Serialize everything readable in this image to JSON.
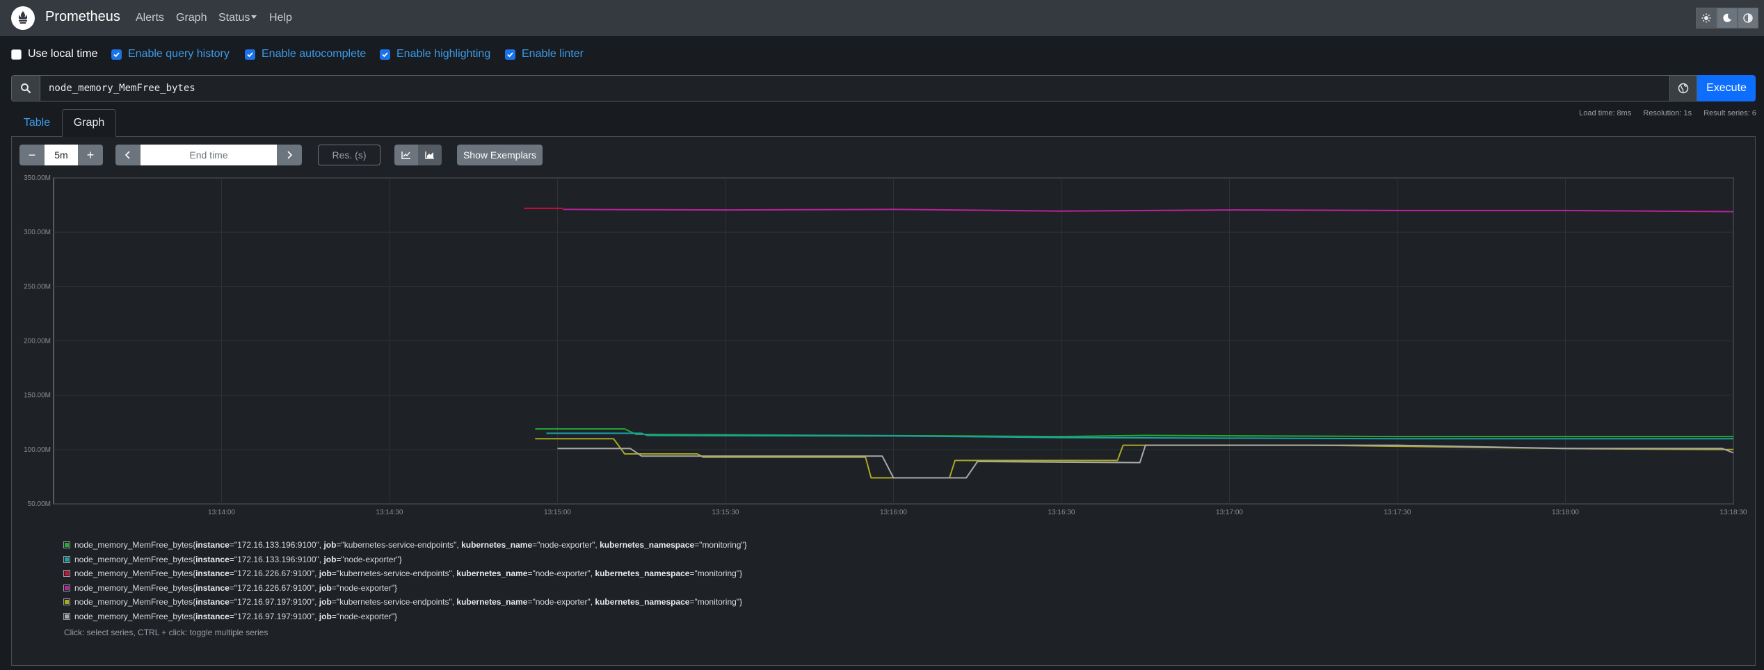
{
  "navbar": {
    "brand": "Prometheus",
    "links": [
      "Alerts",
      "Graph",
      "Status",
      "Help"
    ]
  },
  "options": {
    "use_local_time": "Use local time",
    "query_history": "Enable query history",
    "autocomplete": "Enable autocomplete",
    "highlighting": "Enable highlighting",
    "linter": "Enable linter"
  },
  "query": {
    "expression": "node_memory_MemFree_bytes",
    "execute_label": "Execute"
  },
  "tabs": {
    "table": "Table",
    "graph": "Graph"
  },
  "stats": {
    "load_time": "Load time: 8ms",
    "resolution": "Resolution: 1s",
    "result_series": "Result series: 6"
  },
  "controls": {
    "range": "5m",
    "end_time_placeholder": "End time",
    "resolution_placeholder": "Res. (s)",
    "show_exemplars": "Show Exemplars",
    "minus": "−",
    "plus": "+"
  },
  "chart_data": {
    "type": "line",
    "title": "",
    "xlabel": "",
    "ylabel": "",
    "y_ticks": [
      "50.00M",
      "100.00M",
      "150.00M",
      "200.00M",
      "250.00M",
      "300.00M",
      "350.00M"
    ],
    "ylim": [
      50,
      350
    ],
    "x_ticks": [
      "13:14:00",
      "13:14:30",
      "13:15:00",
      "13:15:30",
      "13:16:00",
      "13:16:30",
      "13:17:00",
      "13:17:30",
      "13:18:00",
      "13:18:30"
    ],
    "xlim": [
      "13:13:30",
      "13:18:30"
    ],
    "y_unit": "M",
    "grid": true,
    "series": [
      {
        "name": "node_memory_MemFree_bytes{instance=\"172.16.133.196:9100\", job=\"kubernetes-service-endpoints\", kubernetes_name=\"node-exporter\", kubernetes_namespace=\"monitoring\"}",
        "color": "#22aa33",
        "points": [
          [
            "13:14:56",
            119
          ],
          [
            "13:15:12",
            119
          ],
          [
            "13:15:14",
            114
          ],
          [
            "13:16:30",
            112
          ],
          [
            "13:16:45",
            113
          ],
          [
            "13:17:30",
            112
          ],
          [
            "13:18:30",
            112
          ]
        ]
      },
      {
        "name": "node_memory_MemFree_bytes{instance=\"172.16.133.196:9100\", job=\"node-exporter\"}",
        "color": "#1aa0a6",
        "points": [
          [
            "13:14:58",
            115
          ],
          [
            "13:15:15",
            115
          ],
          [
            "13:15:16",
            113
          ],
          [
            "13:16:00",
            112.5
          ],
          [
            "13:16:30",
            111
          ],
          [
            "13:17:30",
            110
          ],
          [
            "13:18:30",
            110
          ]
        ]
      },
      {
        "name": "node_memory_MemFree_bytes{instance=\"172.16.226.67:9100\", job=\"kubernetes-service-endpoints\", kubernetes_name=\"node-exporter\", kubernetes_namespace=\"monitoring\"}",
        "color": "#cc1133",
        "points": [
          [
            "13:14:54",
            322
          ],
          [
            "13:15:01",
            322
          ]
        ]
      },
      {
        "name": "node_memory_MemFree_bytes{instance=\"172.16.226.67:9100\", job=\"node-exporter\"}",
        "color": "#bb2299",
        "points": [
          [
            "13:15:01",
            321
          ],
          [
            "13:15:30",
            320.5
          ],
          [
            "13:16:00",
            321
          ],
          [
            "13:16:30",
            319.5
          ],
          [
            "13:17:00",
            320.5
          ],
          [
            "13:17:30",
            320
          ],
          [
            "13:18:00",
            320
          ],
          [
            "13:18:30",
            319
          ]
        ]
      },
      {
        "name": "node_memory_MemFree_bytes{instance=\"172.16.97.197:9100\", job=\"kubernetes-service-endpoints\", kubernetes_name=\"node-exporter\", kubernetes_namespace=\"monitoring\"}",
        "color": "#aaaa22",
        "points": [
          [
            "13:14:56",
            110
          ],
          [
            "13:15:10",
            110
          ],
          [
            "13:15:12",
            96
          ],
          [
            "13:15:25",
            96
          ],
          [
            "13:15:26",
            93
          ],
          [
            "13:15:55",
            93
          ],
          [
            "13:15:56",
            74
          ],
          [
            "13:16:10",
            74
          ],
          [
            "13:16:11",
            90
          ],
          [
            "13:16:40",
            90
          ],
          [
            "13:16:41",
            104
          ],
          [
            "13:17:15",
            104
          ],
          [
            "13:17:30",
            103
          ],
          [
            "13:18:00",
            101
          ],
          [
            "13:18:25",
            100
          ],
          [
            "13:18:30",
            100
          ]
        ]
      },
      {
        "name": "node_memory_MemFree_bytes{instance=\"172.16.97.197:9100\", job=\"node-exporter\"}",
        "color": "#a8a8a8",
        "points": [
          [
            "13:15:00",
            101
          ],
          [
            "13:15:13",
            101
          ],
          [
            "13:15:15",
            94
          ],
          [
            "13:15:58",
            94
          ],
          [
            "13:16:00",
            74
          ],
          [
            "13:16:13",
            74
          ],
          [
            "13:16:15",
            89
          ],
          [
            "13:16:44",
            88
          ],
          [
            "13:16:45",
            104
          ],
          [
            "13:17:30",
            104
          ],
          [
            "13:18:00",
            101
          ],
          [
            "13:18:28",
            101
          ],
          [
            "13:18:30",
            97
          ]
        ]
      }
    ]
  },
  "legend": {
    "entries": [
      {
        "color": "#22aa33",
        "metric": "node_memory_MemFree_bytes",
        "labels": [
          [
            "instance",
            "172.16.133.196:9100"
          ],
          [
            "job",
            "kubernetes-service-endpoints"
          ],
          [
            "kubernetes_name",
            "node-exporter"
          ],
          [
            "kubernetes_namespace",
            "monitoring"
          ]
        ]
      },
      {
        "color": "#1aa0a6",
        "metric": "node_memory_MemFree_bytes",
        "labels": [
          [
            "instance",
            "172.16.133.196:9100"
          ],
          [
            "job",
            "node-exporter"
          ]
        ]
      },
      {
        "color": "#cc1133",
        "metric": "node_memory_MemFree_bytes",
        "labels": [
          [
            "instance",
            "172.16.226.67:9100"
          ],
          [
            "job",
            "kubernetes-service-endpoints"
          ],
          [
            "kubernetes_name",
            "node-exporter"
          ],
          [
            "kubernetes_namespace",
            "monitoring"
          ]
        ]
      },
      {
        "color": "#bb2299",
        "metric": "node_memory_MemFree_bytes",
        "labels": [
          [
            "instance",
            "172.16.226.67:9100"
          ],
          [
            "job",
            "node-exporter"
          ]
        ]
      },
      {
        "color": "#aaaa22",
        "metric": "node_memory_MemFree_bytes",
        "labels": [
          [
            "instance",
            "172.16.97.197:9100"
          ],
          [
            "job",
            "kubernetes-service-endpoints"
          ],
          [
            "kubernetes_name",
            "node-exporter"
          ],
          [
            "kubernetes_namespace",
            "monitoring"
          ]
        ]
      },
      {
        "color": "#a8a8a8",
        "metric": "node_memory_MemFree_bytes",
        "labels": [
          [
            "instance",
            "172.16.97.197:9100"
          ],
          [
            "job",
            "node-exporter"
          ]
        ]
      }
    ],
    "hint": "Click: select series, CTRL + click: toggle multiple series"
  }
}
